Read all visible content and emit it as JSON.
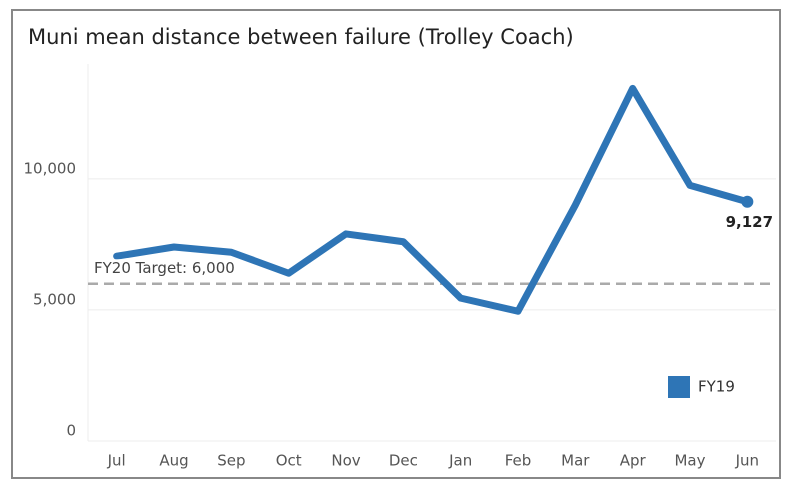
{
  "chart_data": {
    "type": "line",
    "title": "Muni mean distance between failure (Trolley Coach)",
    "categories": [
      "Jul",
      "Aug",
      "Sep",
      "Oct",
      "Nov",
      "Dec",
      "Jan",
      "Feb",
      "Mar",
      "Apr",
      "May",
      "Jun"
    ],
    "series": [
      {
        "name": "FY19",
        "color": "#2e75b6",
        "values": [
          7050,
          7400,
          7200,
          6400,
          7900,
          7600,
          5450,
          4950,
          9000,
          13450,
          9750,
          9127
        ],
        "value_labels": [
          null,
          null,
          null,
          null,
          null,
          null,
          null,
          null,
          null,
          null,
          null,
          "9,127"
        ]
      }
    ],
    "ylim": [
      0,
      14000
    ],
    "yticks": [
      0,
      {
        "value": 5000,
        "label": "5,000"
      },
      {
        "value": 10000,
        "label": "10,000"
      }
    ],
    "grid": true,
    "legend": "bottom-right",
    "target": {
      "label": "FY20 Target: 6,000",
      "value": 6000,
      "color": "#aaaaaa"
    }
  }
}
